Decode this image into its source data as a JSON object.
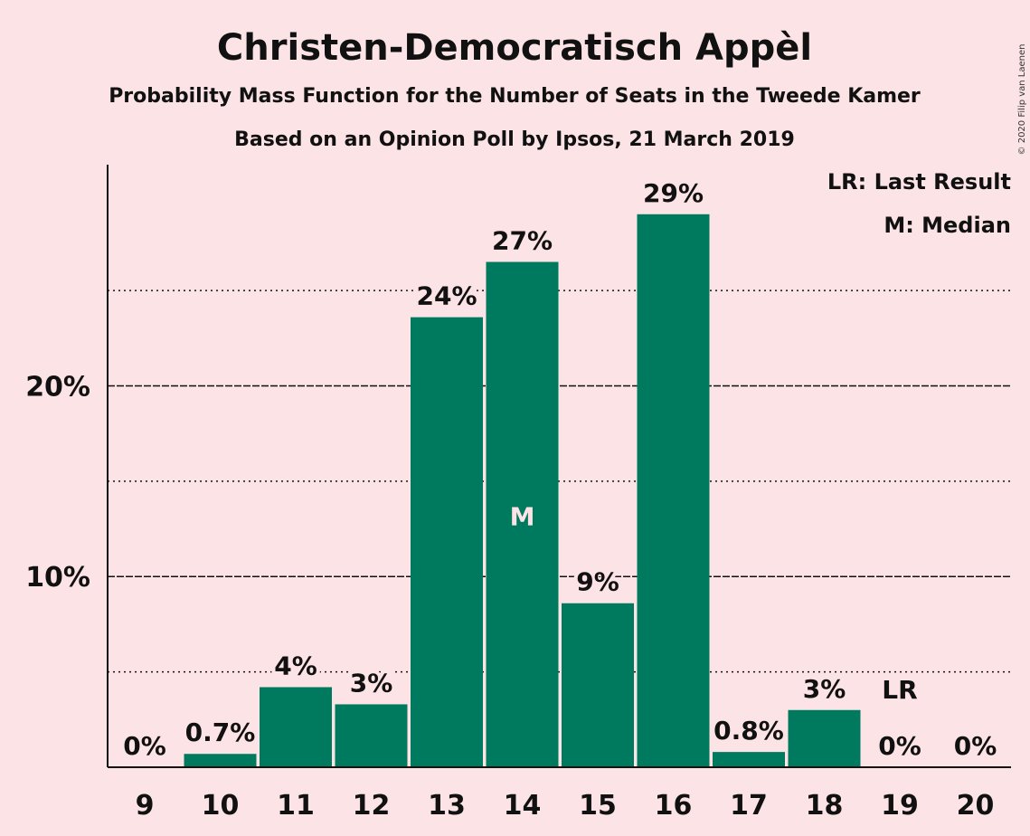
{
  "chart_data": {
    "type": "bar",
    "title": "Christen-Democratisch Appèl",
    "subtitle": "Probability Mass Function for the Number of Seats in the Tweede Kamer",
    "subtitle2": "Based on an Opinion Poll by Ipsos, 21 March 2019",
    "categories": [
      "9",
      "10",
      "11",
      "12",
      "13",
      "14",
      "15",
      "16",
      "17",
      "18",
      "19",
      "20"
    ],
    "values": [
      0,
      0.7,
      4.2,
      3.3,
      23.6,
      26.5,
      8.6,
      29.0,
      0.8,
      3.0,
      0,
      0
    ],
    "value_labels": [
      "0%",
      "0.7%",
      "4%",
      "3%",
      "24%",
      "27%",
      "9%",
      "29%",
      "0.8%",
      "3%",
      "0%",
      "0%"
    ],
    "ylim": [
      0,
      31.6
    ],
    "yticks": [
      10,
      20
    ],
    "ytick_labels": [
      "10%",
      "20%"
    ],
    "minor_gridlines": [
      5,
      15,
      25
    ],
    "median_category": "14",
    "median_label": "M",
    "last_result_category": "19",
    "last_result_label": "LR",
    "legend": [
      "LR: Last Result",
      "M: Median"
    ],
    "legend_position": "top-right",
    "bar_color": "#007A5E",
    "background_color": "#FCE4E6",
    "copyright": "© 2020 Filip van Laenen"
  }
}
